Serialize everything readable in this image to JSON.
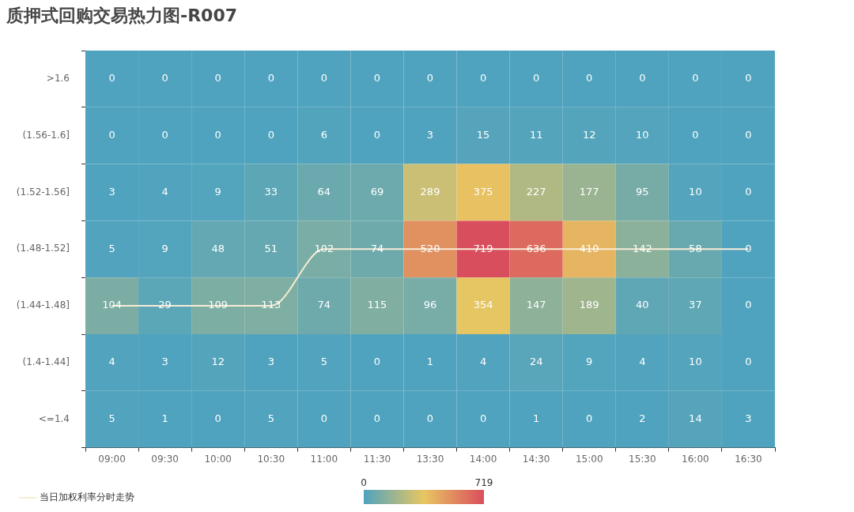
{
  "chart_data": {
    "type": "heatmap",
    "title": "质押式回购交易热力图-R007",
    "categories": [
      "09:00",
      "09:30",
      "10:00",
      "10:30",
      "11:00",
      "11:30",
      "13:30",
      "14:00",
      "14:30",
      "15:00",
      "15:30",
      "16:00",
      "16:30"
    ],
    "y_categories": [
      ">1.6",
      "(1.56-1.6]",
      "(1.52-1.56]",
      "(1.48-1.52]",
      "(1.44-1.48]",
      "(1.4-1.44]",
      "<=1.4"
    ],
    "cells": [
      [
        0,
        0,
        0,
        0,
        0,
        0,
        0,
        0,
        0,
        0,
        0,
        0,
        0
      ],
      [
        0,
        0,
        0,
        0,
        6,
        0,
        3,
        15,
        11,
        12,
        10,
        0,
        0
      ],
      [
        3,
        4,
        9,
        33,
        64,
        69,
        289,
        375,
        227,
        177,
        95,
        10,
        0
      ],
      [
        5,
        9,
        48,
        51,
        102,
        74,
        520,
        719,
        636,
        410,
        142,
        58,
        0
      ],
      [
        104,
        29,
        109,
        113,
        74,
        115,
        96,
        354,
        147,
        189,
        40,
        37,
        0
      ],
      [
        4,
        3,
        12,
        3,
        5,
        0,
        1,
        4,
        24,
        9,
        4,
        10,
        0
      ],
      [
        5,
        1,
        0,
        5,
        0,
        0,
        0,
        0,
        1,
        0,
        2,
        14,
        3
      ]
    ],
    "clim": [
      0,
      719
    ],
    "cticks": [
      0,
      719
    ],
    "data_labels": true,
    "grid": false,
    "legend": "bottom left",
    "series": [
      {
        "name": "当日加权利率分时走势",
        "type": "line",
        "color": "#f7ecd6",
        "values": [
          4,
          4,
          4,
          4,
          3,
          3,
          3,
          3,
          3,
          3,
          3,
          3,
          3
        ],
        "value_labels": [
          null,
          null,
          null,
          null,
          null,
          null,
          null,
          null,
          null,
          null,
          null,
          null,
          null
        ]
      }
    ]
  }
}
